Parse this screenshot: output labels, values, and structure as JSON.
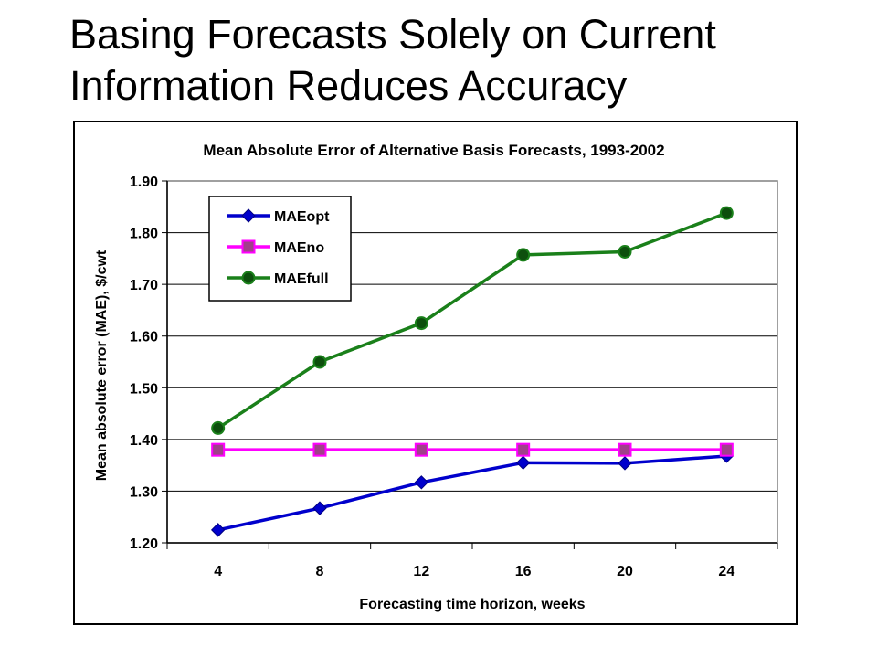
{
  "slide": {
    "title_line1": "Basing Forecasts Solely on Current",
    "title_line2": "Information Reduces Accuracy"
  },
  "chart_data": {
    "type": "line",
    "title": "Mean Absolute Error of Alternative Basis Forecasts, 1993-2002",
    "xlabel": "Forecasting time horizon, weeks",
    "ylabel": "Mean absolute error (MAE), $/cwt",
    "x": [
      4,
      8,
      12,
      16,
      20,
      24
    ],
    "xticks": [
      "4",
      "8",
      "12",
      "16",
      "20",
      "24"
    ],
    "yticks": [
      "1.20",
      "1.30",
      "1.40",
      "1.50",
      "1.60",
      "1.70",
      "1.80",
      "1.90"
    ],
    "ylim": [
      1.2,
      1.9
    ],
    "grid": "horizontal",
    "legend_position": "top-left",
    "series": [
      {
        "name": "MAEopt",
        "color": "#0000cc",
        "marker": "diamond",
        "values": [
          1.225,
          1.267,
          1.317,
          1.355,
          1.354,
          1.368
        ]
      },
      {
        "name": "MAEno",
        "color": "#ff00ff",
        "marker": "square",
        "values": [
          1.38,
          1.38,
          1.38,
          1.38,
          1.38,
          1.38
        ]
      },
      {
        "name": "MAEfull",
        "color": "#1a801a",
        "marker": "circle",
        "values": [
          1.422,
          1.55,
          1.625,
          1.757,
          1.763,
          1.838
        ]
      }
    ]
  }
}
